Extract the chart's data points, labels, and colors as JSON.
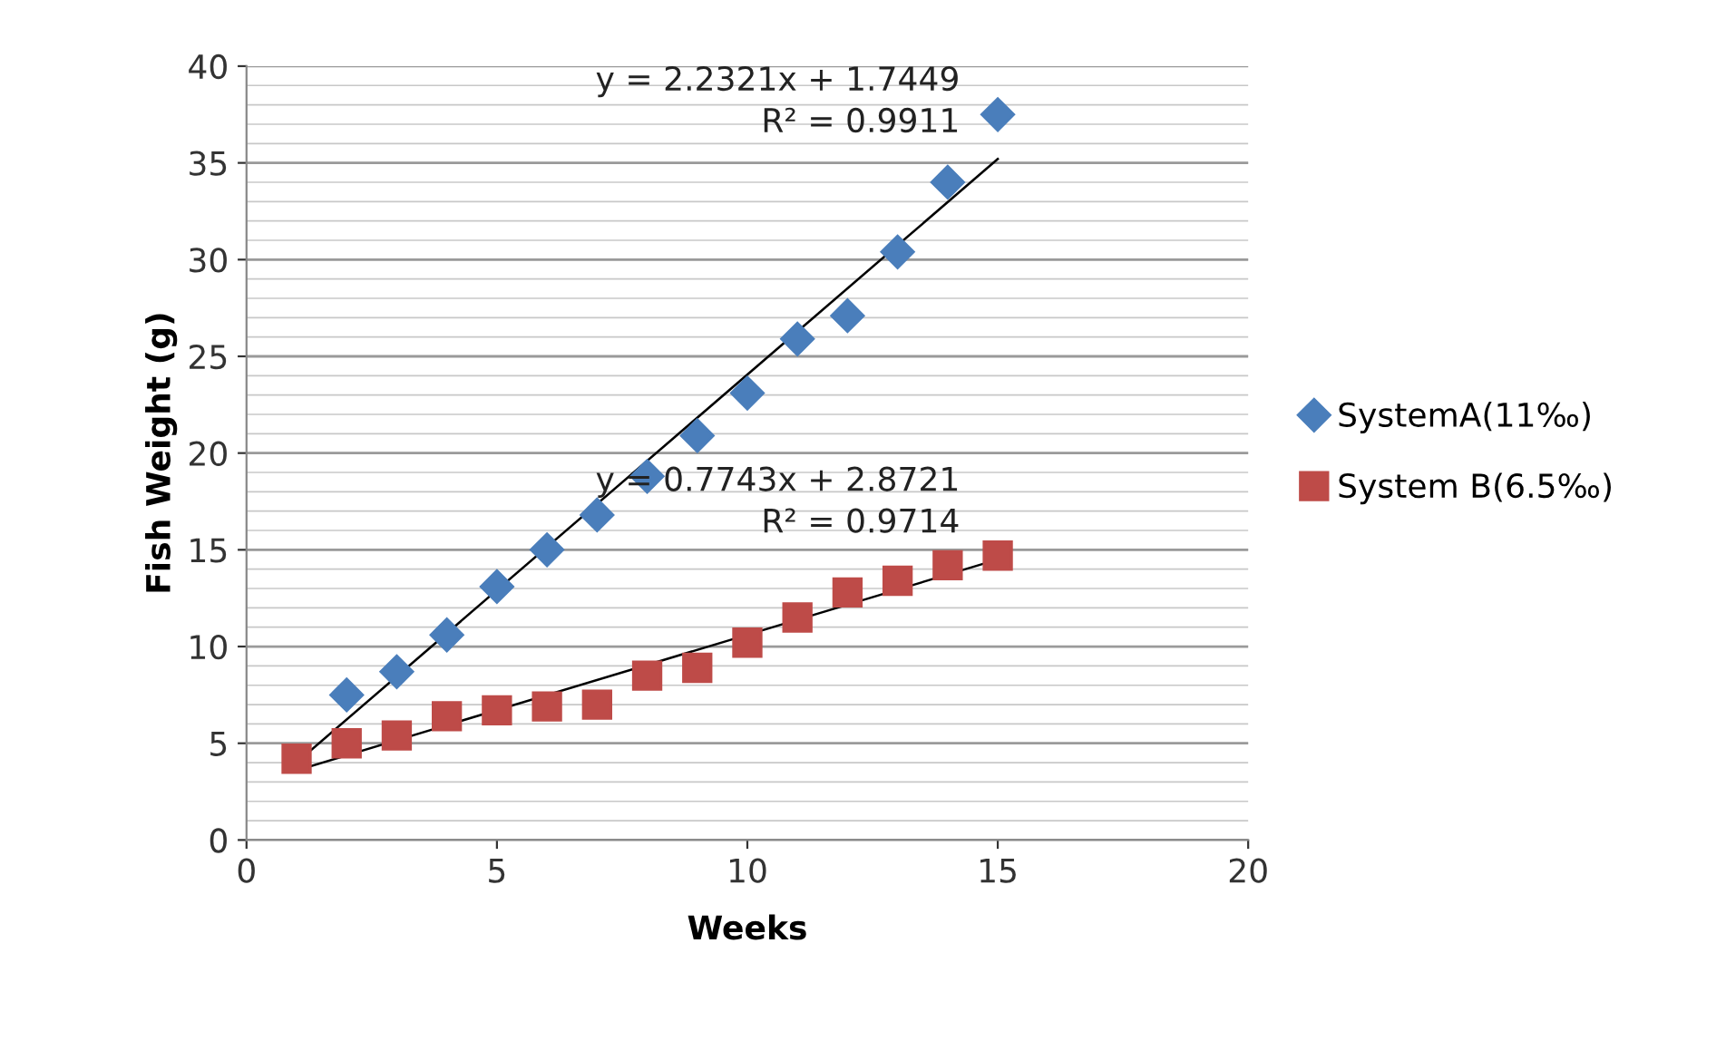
{
  "chart_data": {
    "type": "scatter",
    "xlabel": "Weeks",
    "ylabel": "Fish Weight (g)",
    "xlim": [
      0,
      20
    ],
    "xticks": [
      0,
      5,
      10,
      15,
      20
    ],
    "ylim": [
      0,
      40
    ],
    "yticks": [
      0,
      5,
      10,
      15,
      20,
      25,
      30,
      35,
      40
    ],
    "grid": "y",
    "legend": "right",
    "series": [
      {
        "name": "SystemA(11‰)",
        "color": "#4a7ebb",
        "marker": "diamond",
        "x": [
          2,
          3,
          4,
          5,
          6,
          7,
          8,
          9,
          10,
          11,
          12,
          13,
          14,
          15
        ],
        "values": [
          7.5,
          8.7,
          10.6,
          13.1,
          15.0,
          16.8,
          18.8,
          20.9,
          23.1,
          25.9,
          27.1,
          30.4,
          34.0,
          37.5
        ]
      },
      {
        "name": "System B(6.5‰)",
        "color": "#be4b48",
        "marker": "square",
        "x": [
          1,
          2,
          3,
          4,
          5,
          6,
          7,
          8,
          9,
          10,
          11,
          12,
          13,
          14,
          15
        ],
        "values": [
          4.2,
          5.0,
          5.4,
          6.4,
          6.7,
          6.9,
          7.0,
          8.5,
          8.9,
          10.2,
          11.5,
          12.8,
          13.4,
          14.2,
          14.7
        ]
      },
      {
        "type": "line",
        "color": "#000000",
        "x": [
          1,
          15
        ],
        "values": [
          4.0,
          35.2
        ]
      },
      {
        "type": "line",
        "color": "#000000",
        "x": [
          1,
          15
        ],
        "values": [
          3.6,
          14.5
        ]
      }
    ],
    "annotations": [
      "y = 2.2321x + 1.7449\nR² = 0.9911",
      "y = 0.7743x + 2.8721\nR² = 0.9714"
    ]
  }
}
